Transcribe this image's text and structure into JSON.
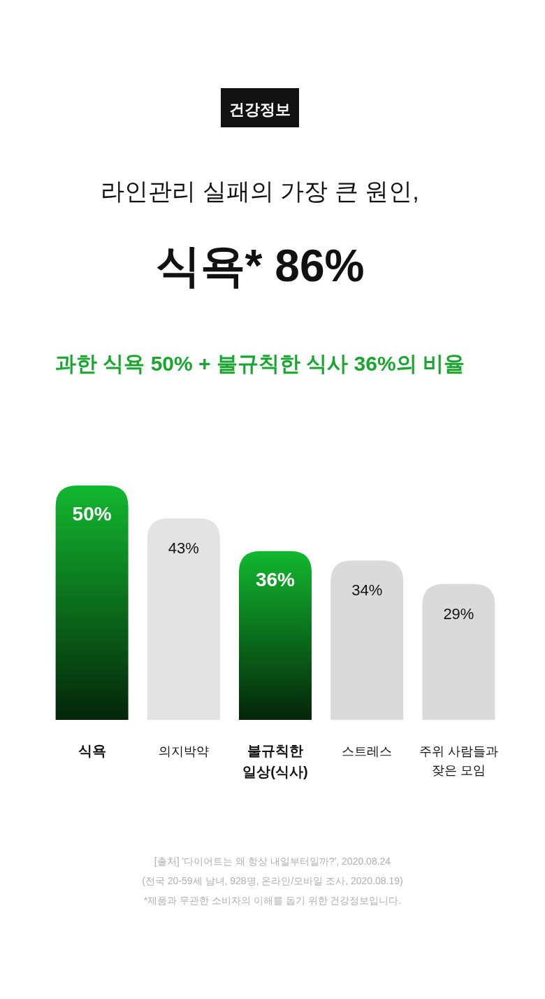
{
  "chart_data": {
    "type": "bar",
    "title": "라인관리 실패의 가장 큰 원인,\n식욕* 86%",
    "subtitle": "과한 식욕 50% + 불규칙한 식사 36%의 비율",
    "categories": [
      "식욕",
      "의지박약",
      "불규칙한 일상(식사)",
      "스트레스",
      "주위 사람들과 잦은 모임"
    ],
    "values": [
      50,
      43,
      36,
      34,
      29
    ],
    "value_labels": [
      "50%",
      "43%",
      "36%",
      "34%",
      "29%"
    ],
    "colors": [
      "#12b82f",
      "#e3e3e3",
      "#12b82f",
      "#dadada",
      "#dadada"
    ],
    "annotations": [
      "건강정보",
      "[출처] '다이어트는 왜 항상 내일부터일까?', 2020.08.24",
      "(전국 20-59세 남녀, 928명, 온라인/모바일 조사, 2020.08.19)",
      "*제품과 무관한 소비자의 이해를 돕기 위한 건강정보입니다."
    ]
  }
}
